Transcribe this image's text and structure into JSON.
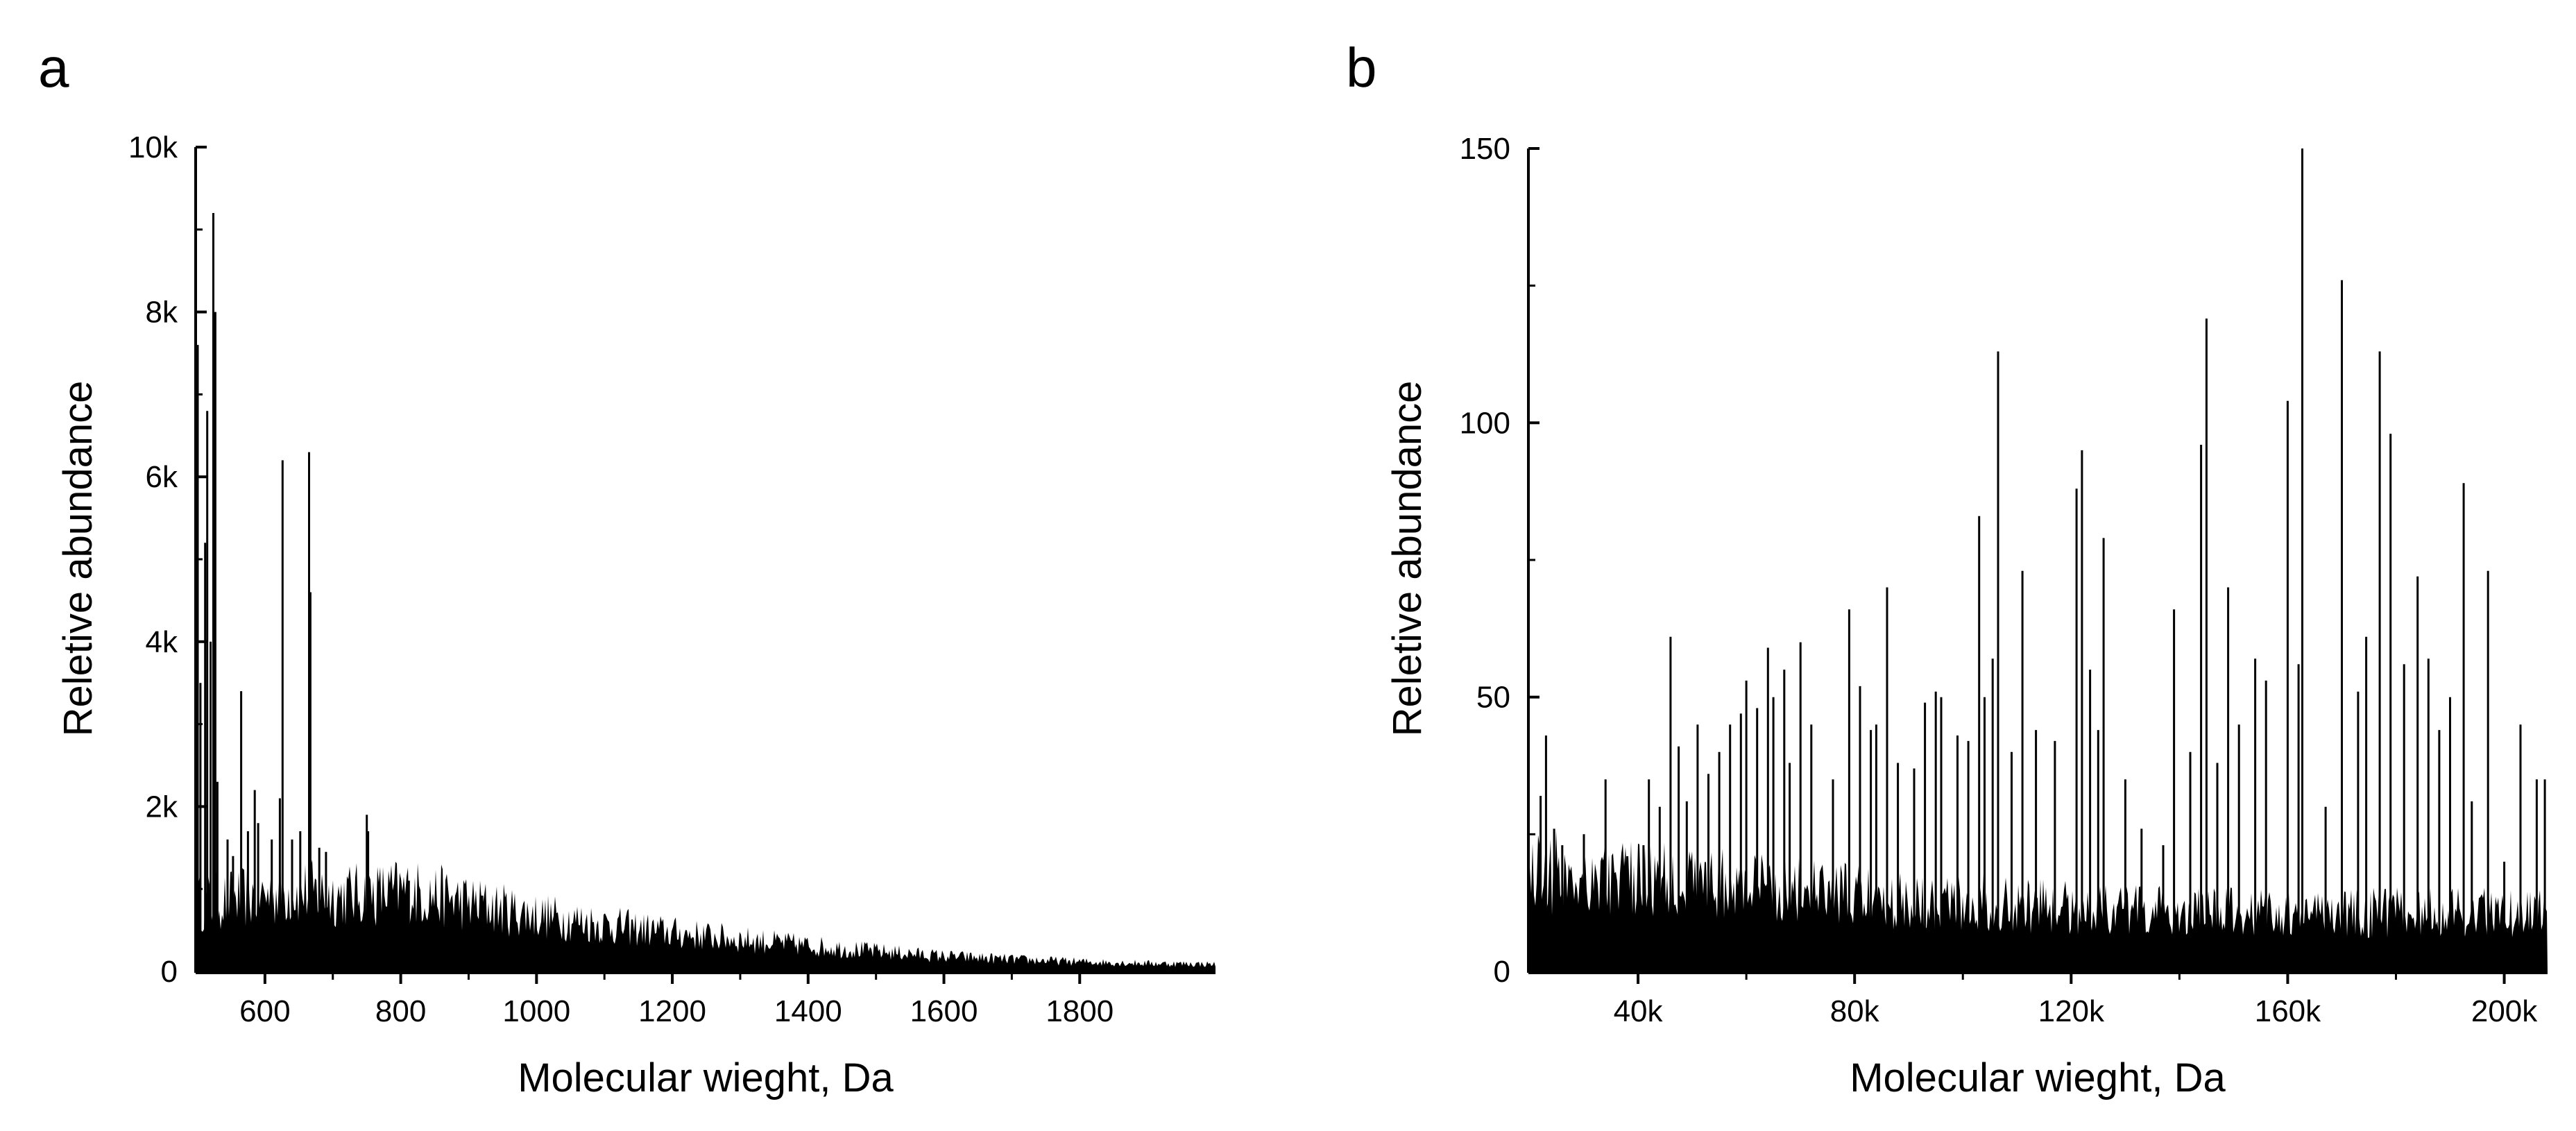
{
  "chart_data": [
    {
      "panel": "a",
      "type": "bar",
      "xlabel": "Molecular wieght, Da",
      "ylabel": "Reletive abundance",
      "xlim": [
        500,
        2000
      ],
      "ylim": [
        0,
        10000
      ],
      "x_ticks": [
        {
          "value": 600,
          "label": "600"
        },
        {
          "value": 800,
          "label": "800"
        },
        {
          "value": 1000,
          "label": "1000"
        },
        {
          "value": 1200,
          "label": "1200"
        },
        {
          "value": 1400,
          "label": "1400"
        },
        {
          "value": 1600,
          "label": "1600"
        },
        {
          "value": 1800,
          "label": "1800"
        }
      ],
      "y_ticks": [
        {
          "value": 0,
          "label": "0"
        },
        {
          "value": 2000,
          "label": "2k"
        },
        {
          "value": 4000,
          "label": "4k"
        },
        {
          "value": 6000,
          "label": "6k"
        },
        {
          "value": 8000,
          "label": "8k"
        },
        {
          "value": 10000,
          "label": "10k"
        }
      ],
      "baseline": {
        "x": [
          500,
          550,
          600,
          650,
          700,
          750,
          800,
          850,
          900,
          1000,
          1100,
          1200,
          1300,
          1400,
          1500,
          1600,
          1700,
          1800,
          1900,
          2000
        ],
        "y": [
          850,
          900,
          950,
          1000,
          950,
          950,
          1000,
          950,
          850,
          700,
          580,
          480,
          400,
          320,
          250,
          190,
          150,
          120,
          100,
          90
        ]
      },
      "peaks": [
        {
          "x": 501,
          "y": 7600
        },
        {
          "x": 505,
          "y": 3500
        },
        {
          "x": 512,
          "y": 5200
        },
        {
          "x": 515,
          "y": 6800
        },
        {
          "x": 520,
          "y": 4000
        },
        {
          "x": 524,
          "y": 9200
        },
        {
          "x": 527,
          "y": 8000
        },
        {
          "x": 530,
          "y": 2300
        },
        {
          "x": 545,
          "y": 1600
        },
        {
          "x": 553,
          "y": 1400
        },
        {
          "x": 565,
          "y": 3400
        },
        {
          "x": 575,
          "y": 1700
        },
        {
          "x": 585,
          "y": 2200
        },
        {
          "x": 590,
          "y": 1800
        },
        {
          "x": 610,
          "y": 1600
        },
        {
          "x": 622,
          "y": 2100
        },
        {
          "x": 626,
          "y": 6200
        },
        {
          "x": 640,
          "y": 1600
        },
        {
          "x": 652,
          "y": 1700
        },
        {
          "x": 665,
          "y": 6300
        },
        {
          "x": 667,
          "y": 4600
        },
        {
          "x": 680,
          "y": 1500
        },
        {
          "x": 690,
          "y": 1450
        },
        {
          "x": 750,
          "y": 1900
        },
        {
          "x": 752,
          "y": 1700
        },
        {
          "x": 812,
          "y": 1100
        },
        {
          "x": 920,
          "y": 920
        }
      ]
    },
    {
      "panel": "b",
      "type": "bar",
      "xlabel": "Molecular wieght, Da",
      "ylabel": "Reletive abundance",
      "xlim": [
        20000,
        208000
      ],
      "ylim": [
        0,
        150
      ],
      "x_ticks": [
        {
          "value": 40000,
          "label": "40k"
        },
        {
          "value": 80000,
          "label": "80k"
        },
        {
          "value": 120000,
          "label": "120k"
        },
        {
          "value": 160000,
          "label": "160k"
        },
        {
          "value": 200000,
          "label": "200k"
        }
      ],
      "y_ticks": [
        {
          "value": 0,
          "label": "0"
        },
        {
          "value": 50,
          "label": "50"
        },
        {
          "value": 100,
          "label": "100"
        },
        {
          "value": 150,
          "label": "150"
        }
      ],
      "baseline": {
        "x": [
          20000,
          40000,
          60000,
          80000,
          100000,
          120000,
          140000,
          160000,
          180000,
          208000
        ],
        "y": [
          19,
          17,
          16,
          14,
          13,
          12,
          11,
          11,
          11,
          11
        ]
      },
      "peaks": [
        {
          "x": 22000,
          "y": 32
        },
        {
          "x": 23000,
          "y": 43
        },
        {
          "x": 24500,
          "y": 26
        },
        {
          "x": 26000,
          "y": 23
        },
        {
          "x": 30000,
          "y": 25
        },
        {
          "x": 34000,
          "y": 35
        },
        {
          "x": 38000,
          "y": 21
        },
        {
          "x": 41000,
          "y": 23
        },
        {
          "x": 42000,
          "y": 35
        },
        {
          "x": 44000,
          "y": 30
        },
        {
          "x": 46000,
          "y": 61
        },
        {
          "x": 47500,
          "y": 41
        },
        {
          "x": 49000,
          "y": 31
        },
        {
          "x": 51000,
          "y": 45
        },
        {
          "x": 53000,
          "y": 36
        },
        {
          "x": 55000,
          "y": 40
        },
        {
          "x": 57000,
          "y": 45
        },
        {
          "x": 59000,
          "y": 47
        },
        {
          "x": 60000,
          "y": 53
        },
        {
          "x": 62000,
          "y": 48
        },
        {
          "x": 64000,
          "y": 59
        },
        {
          "x": 65000,
          "y": 50
        },
        {
          "x": 67000,
          "y": 55
        },
        {
          "x": 68000,
          "y": 38
        },
        {
          "x": 70000,
          "y": 60
        },
        {
          "x": 72000,
          "y": 45
        },
        {
          "x": 76000,
          "y": 35
        },
        {
          "x": 79000,
          "y": 66
        },
        {
          "x": 81000,
          "y": 52
        },
        {
          "x": 83000,
          "y": 44
        },
        {
          "x": 84000,
          "y": 45
        },
        {
          "x": 86000,
          "y": 70
        },
        {
          "x": 88000,
          "y": 38
        },
        {
          "x": 91000,
          "y": 37
        },
        {
          "x": 93000,
          "y": 49
        },
        {
          "x": 95000,
          "y": 51
        },
        {
          "x": 96000,
          "y": 50
        },
        {
          "x": 99000,
          "y": 43
        },
        {
          "x": 101000,
          "y": 42
        },
        {
          "x": 103000,
          "y": 83
        },
        {
          "x": 104000,
          "y": 50
        },
        {
          "x": 105500,
          "y": 57
        },
        {
          "x": 106500,
          "y": 113
        },
        {
          "x": 109000,
          "y": 40
        },
        {
          "x": 111000,
          "y": 73
        },
        {
          "x": 113500,
          "y": 44
        },
        {
          "x": 117000,
          "y": 42
        },
        {
          "x": 121000,
          "y": 88
        },
        {
          "x": 122000,
          "y": 95
        },
        {
          "x": 123500,
          "y": 55
        },
        {
          "x": 125000,
          "y": 44
        },
        {
          "x": 126000,
          "y": 79
        },
        {
          "x": 130000,
          "y": 35
        },
        {
          "x": 133000,
          "y": 26
        },
        {
          "x": 137000,
          "y": 23
        },
        {
          "x": 139000,
          "y": 66
        },
        {
          "x": 142000,
          "y": 40
        },
        {
          "x": 144000,
          "y": 96
        },
        {
          "x": 145000,
          "y": 119
        },
        {
          "x": 147000,
          "y": 38
        },
        {
          "x": 149000,
          "y": 70
        },
        {
          "x": 151000,
          "y": 45
        },
        {
          "x": 154000,
          "y": 57
        },
        {
          "x": 156000,
          "y": 53
        },
        {
          "x": 160000,
          "y": 104
        },
        {
          "x": 162000,
          "y": 56
        },
        {
          "x": 162700,
          "y": 150
        },
        {
          "x": 167000,
          "y": 30
        },
        {
          "x": 170000,
          "y": 126
        },
        {
          "x": 173000,
          "y": 51
        },
        {
          "x": 174500,
          "y": 61
        },
        {
          "x": 177000,
          "y": 113
        },
        {
          "x": 179000,
          "y": 98
        },
        {
          "x": 181500,
          "y": 56
        },
        {
          "x": 184000,
          "y": 72
        },
        {
          "x": 186000,
          "y": 57
        },
        {
          "x": 188000,
          "y": 44
        },
        {
          "x": 190000,
          "y": 50
        },
        {
          "x": 192500,
          "y": 89
        },
        {
          "x": 194000,
          "y": 31
        },
        {
          "x": 197000,
          "y": 73
        },
        {
          "x": 200000,
          "y": 20
        },
        {
          "x": 203000,
          "y": 45
        },
        {
          "x": 206000,
          "y": 35
        },
        {
          "x": 207500,
          "y": 35
        }
      ]
    }
  ],
  "panels": {
    "a": {
      "label": "a"
    },
    "b": {
      "label": "b"
    }
  }
}
